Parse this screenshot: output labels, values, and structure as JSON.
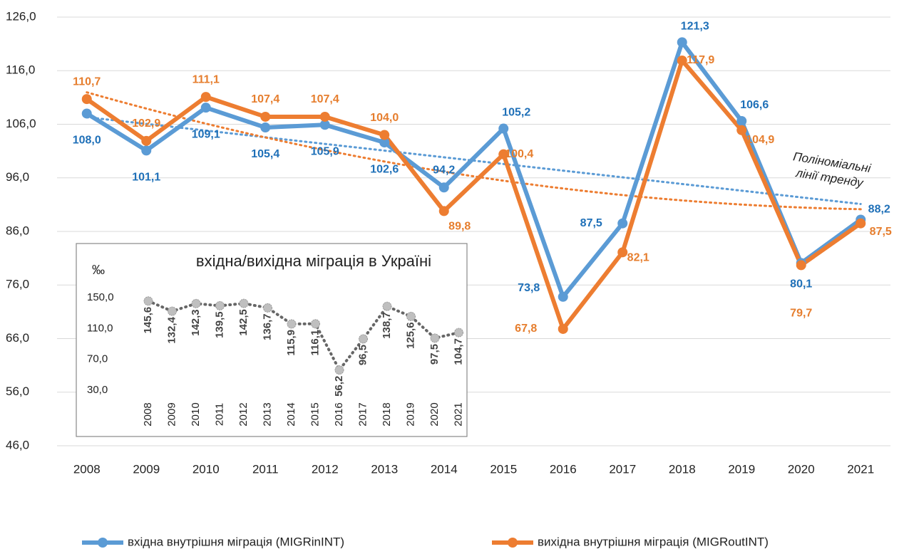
{
  "chart_data": [
    {
      "type": "line",
      "categories": [
        "2008",
        "2009",
        "2010",
        "2011",
        "2012",
        "2013",
        "2014",
        "2015",
        "2016",
        "2017",
        "2018",
        "2019",
        "2020",
        "2021"
      ],
      "ylim": [
        46,
        126
      ],
      "yticks": [
        {
          "value": 46,
          "label": "46,0"
        },
        {
          "value": 56,
          "label": "56,0"
        },
        {
          "value": 66,
          "label": "66,0"
        },
        {
          "value": 76,
          "label": "76,0"
        },
        {
          "value": 86,
          "label": "86,0"
        },
        {
          "value": 96,
          "label": "96,0"
        },
        {
          "value": 106,
          "label": "106,0"
        },
        {
          "value": 116,
          "label": "116,0"
        },
        {
          "value": 126,
          "label": "126,0"
        }
      ],
      "grid": true,
      "legend": "bottom",
      "trendline": "polynomial",
      "annotation": [
        "Поліноміальні",
        "лінії тренду"
      ],
      "series": [
        {
          "name": "вхідна внутрішня міграція (MIGRinINT)",
          "color": "#5b9bd5",
          "label_color": "#1f70b8",
          "values": [
            108.0,
            101.1,
            109.1,
            105.4,
            105.9,
            102.6,
            94.2,
            105.2,
            73.8,
            87.5,
            121.3,
            106.6,
            80.1,
            88.2
          ],
          "value_labels": [
            "108,0",
            "101,1",
            "109,1",
            "105,4",
            "105,9",
            "102,6",
            "94,2",
            "105,2",
            "73,8",
            "87,5",
            "121,3",
            "106,6",
            "80,1",
            "88,2"
          ]
        },
        {
          "name": "вихідна внутрішня міграція (MIGRoutINT)",
          "color": "#ed7d31",
          "label_color": "#e67e2e",
          "values": [
            110.7,
            102.9,
            111.1,
            107.4,
            107.4,
            104.0,
            89.8,
            100.4,
            67.8,
            82.1,
            117.9,
            104.9,
            79.7,
            87.5
          ],
          "value_labels": [
            "110,7",
            "102,9",
            "111,1",
            "107,4",
            "107,4",
            "104,0",
            "89,8",
            "100,4",
            "67,8",
            "82,1",
            "117,9",
            "104,9",
            "79,7",
            "87,5"
          ]
        }
      ]
    },
    {
      "type": "line",
      "title": "вхідна/вихідна міграція в Україні",
      "ylabel": "‰",
      "categories": [
        "2008",
        "2009",
        "2010",
        "2011",
        "2012",
        "2013",
        "2014",
        "2015",
        "2016",
        "2017",
        "2018",
        "2019",
        "2020",
        "2021"
      ],
      "ylim": [
        30,
        150
      ],
      "yticks": [
        {
          "value": 30,
          "label": "30,0"
        },
        {
          "value": 70,
          "label": "70,0"
        },
        {
          "value": 110,
          "label": "110,0"
        },
        {
          "value": 150,
          "label": "150,0"
        }
      ],
      "color": "#666666",
      "values": [
        145.6,
        132.4,
        142.3,
        139.5,
        142.5,
        136.7,
        115.9,
        116.1,
        56.2,
        96.5,
        138.7,
        125.6,
        97.5,
        104.7
      ],
      "value_labels": [
        "145,6",
        "132,4",
        "142,3",
        "139,5",
        "142,5",
        "136,7",
        "115,9",
        "116,1",
        "56,2",
        "96,5",
        "138,7",
        "125,6",
        "97,5",
        "104,7"
      ]
    }
  ]
}
